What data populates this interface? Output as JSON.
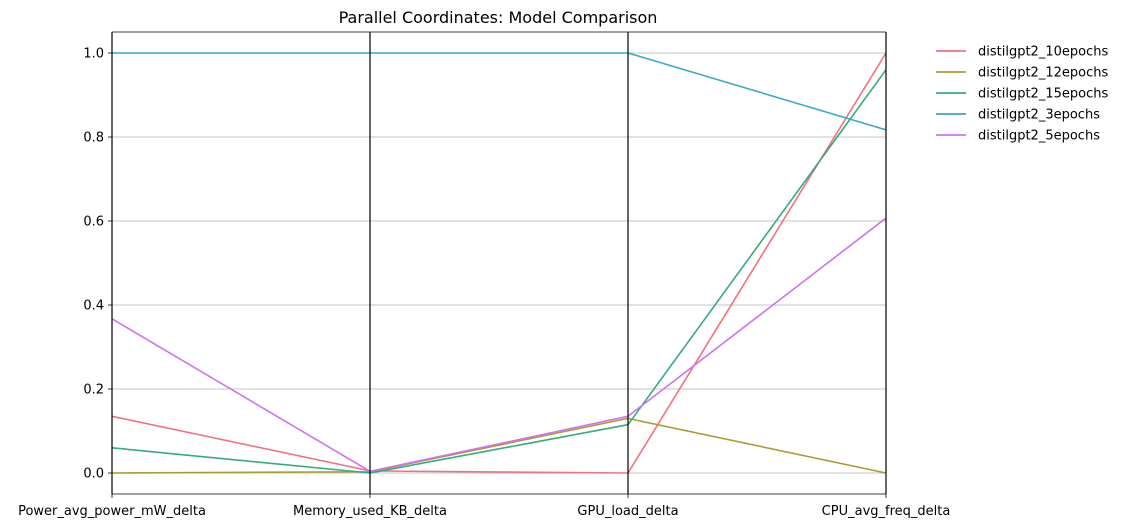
{
  "chart_data": {
    "type": "line",
    "title": "Parallel Coordinates: Model Comparison",
    "categories": [
      "Power_avg_power_mW_delta",
      "Memory_used_KB_delta",
      "GPU_load_delta",
      "CPU_avg_freq_delta"
    ],
    "ylim": [
      -0.05,
      1.05
    ],
    "yticks": [
      "0.0",
      "0.2",
      "0.4",
      "0.6",
      "0.8",
      "1.0"
    ],
    "grid": "horizontal",
    "legend_position": "outside-top-right",
    "series": [
      {
        "name": "distilgpt2_10epochs",
        "color": "#f2707f",
        "values": [
          0.135,
          0.005,
          0.0,
          1.0
        ]
      },
      {
        "name": "distilgpt2_12epochs",
        "color": "#ad9a33",
        "values": [
          0.0,
          0.003,
          0.13,
          0.0
        ]
      },
      {
        "name": "distilgpt2_15epochs",
        "color": "#33ac7d",
        "values": [
          0.06,
          0.0,
          0.115,
          0.96
        ]
      },
      {
        "name": "distilgpt2_3epochs",
        "color": "#38a9c6",
        "values": [
          1.0,
          1.0,
          1.0,
          0.817
        ]
      },
      {
        "name": "distilgpt2_5epochs",
        "color": "#cf72f0",
        "values": [
          0.367,
          0.004,
          0.135,
          0.607
        ]
      }
    ]
  }
}
